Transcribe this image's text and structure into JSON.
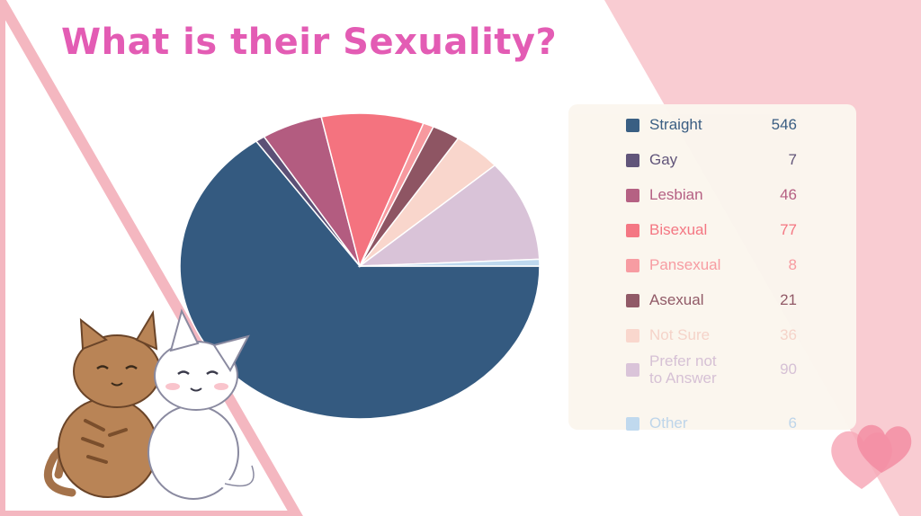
{
  "title": "What is their Sexuality?",
  "colors": {
    "title": "#e35cb4",
    "panel": "#fbf6ee",
    "pink_band": "#f9ccd2",
    "triangle": "#f4b7c0"
  },
  "icons": [
    "cat-illustration",
    "heart-icon"
  ],
  "chart_data": {
    "type": "pie",
    "title": "",
    "legend_position": "right",
    "labels": [
      "Straight",
      "Gay",
      "Lesbian",
      "Bisexual",
      "Pansexual",
      "Asexual",
      "Not Sure",
      "Prefer not to Answer",
      "Other"
    ],
    "values": [
      546,
      7,
      46,
      77,
      8,
      21,
      36,
      90,
      6
    ],
    "colors": [
      "#345a80",
      "#5c5076",
      "#b35c80",
      "#f4737f",
      "#f7999f",
      "#8e5563",
      "#f9d6cc",
      "#d9c3d8",
      "#bed8ee"
    ],
    "label_lines": [
      [
        "Straight"
      ],
      [
        "Gay"
      ],
      [
        "Lesbian"
      ],
      [
        "Bisexual"
      ],
      [
        "Pansexual"
      ],
      [
        "Asexual"
      ],
      [
        "Not Sure"
      ],
      [
        "Prefer not",
        "to Answer"
      ],
      [
        "Other"
      ]
    ],
    "label_colors": [
      "#345a80",
      "#5c5076",
      "#b35c80",
      "#f4737f",
      "#f7999f",
      "#8e5563",
      "#f5d2c8",
      "#d5bfd4",
      "#bcd4ea"
    ]
  }
}
